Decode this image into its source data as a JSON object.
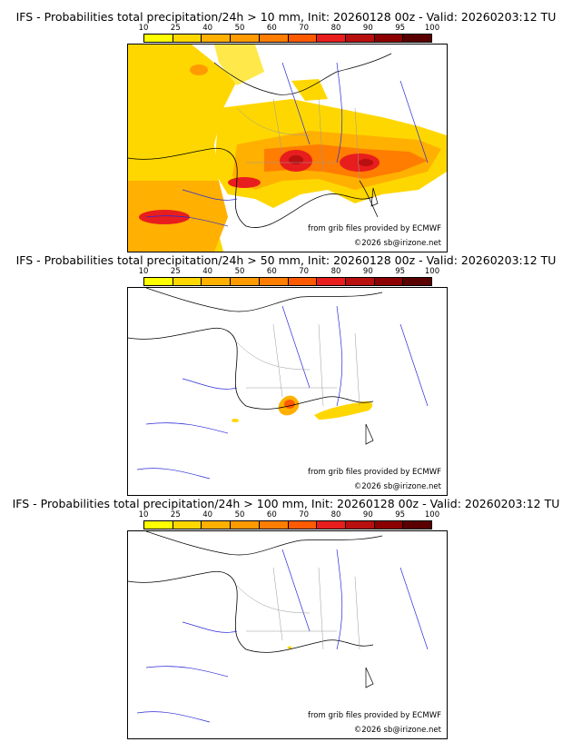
{
  "colorbar": {
    "ticks": [
      "10",
      "25",
      "40",
      "50",
      "60",
      "70",
      "80",
      "90",
      "95",
      "100"
    ],
    "colors": [
      "#ffff00",
      "#ffd700",
      "#ffb000",
      "#ff9a00",
      "#ff7d00",
      "#ff5a00",
      "#e81d1d",
      "#b80f0f",
      "#8c0000",
      "#5a0000"
    ]
  },
  "panels": [
    {
      "title": "IFS - Probabilities total precipitation/24h > 10 mm, Init: 20260128 00z - Valid: 20260203:12 TU",
      "credit_source": "from grib files provided by ECMWF",
      "credit_copyright": "©2026 sb@irizone.net"
    },
    {
      "title": "IFS - Probabilities total precipitation/24h > 50 mm, Init: 20260128 00z - Valid: 20260203:12 TU",
      "credit_source": "from grib files provided by ECMWF",
      "credit_copyright": "©2026 sb@irizone.net"
    },
    {
      "title": "IFS - Probabilities total precipitation/24h > 100 mm, Init: 20260128 00z - Valid: 20260203:12 TU",
      "credit_source": "from grib files provided by ECMWF",
      "credit_copyright": "©2026 sb@irizone.net"
    }
  ]
}
